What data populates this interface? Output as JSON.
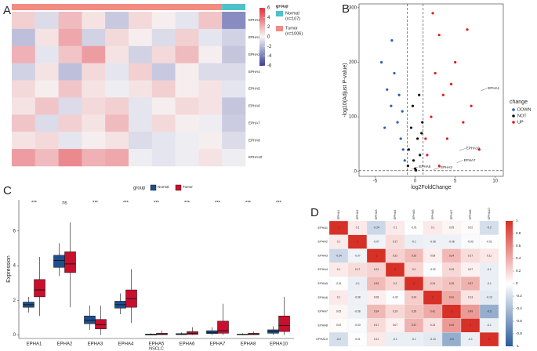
{
  "chart_data": [
    {
      "type": "heatmap",
      "panel": "A",
      "legend_title": "group",
      "rows": [
        "EPHA1",
        "EPHA2",
        "EPHA3",
        "EPHA4",
        "EPHA5",
        "EPHA6",
        "EPHA7",
        "EPHA8",
        "EPHA10"
      ],
      "series": [
        {
          "name": "Normal",
          "count": "(n=107)",
          "color": "#4dc3c8",
          "values": [
            [
              -3.5
            ],
            [
              -1.2
            ],
            [
              -1.6
            ],
            [
              -0.9
            ],
            [
              -0.6
            ],
            [
              -1.6
            ],
            [
              -1.4
            ],
            [
              -0.9
            ],
            [
              -0.3
            ]
          ]
        },
        {
          "name": "Tumor",
          "count": "(n=1006)",
          "color": "#f28b82",
          "values": [
            [
              1.2,
              -0.9,
              1.8,
              0.6,
              -1.5,
              0.9,
              0.3,
              -0.6,
              1.5
            ],
            [
              -1.8,
              0.6,
              2.4,
              -1.2,
              0.9,
              0.3,
              -0.9,
              1.2,
              -0.6
            ],
            [
              2.1,
              -0.6,
              1.5,
              2.7,
              0.6,
              -1.2,
              0.9,
              1.8,
              0.3
            ],
            [
              -1.2,
              0.6,
              -1.8,
              0.9,
              -0.6,
              1.2,
              -1.5,
              0.3,
              -0.9
            ],
            [
              0.9,
              0.3,
              1.5,
              0.6,
              -0.3,
              0.6,
              1.2,
              0.3,
              0.6
            ],
            [
              0.6,
              1.5,
              -0.9,
              0.9,
              1.2,
              -0.6,
              0.3,
              0.9,
              0.6
            ],
            [
              1.5,
              -0.9,
              1.2,
              0.6,
              1.8,
              -0.6,
              0.9,
              0.3,
              -0.3
            ],
            [
              0.6,
              0.9,
              -0.6,
              0.3,
              0.6,
              -0.9,
              -0.6,
              -0.3,
              0.3
            ],
            [
              2.7,
              1.8,
              3.3,
              2.1,
              2.4,
              -0.3,
              -0.6,
              -0.3,
              0.6
            ]
          ]
        }
      ],
      "colorbar": {
        "lim": [
          -6,
          6
        ],
        "ticks": [
          6,
          4,
          2,
          0,
          -2,
          -4,
          -6
        ],
        "colors": [
          "#3a3f99",
          "#f7f7f7",
          "#e0303a"
        ]
      }
    },
    {
      "type": "scatter",
      "panel": "B",
      "xlabel": "log2FoldChange",
      "ylabel": "-log10(Adjust P-value)",
      "xlim": [
        -7,
        11
      ],
      "ylim": [
        -9,
        307
      ],
      "xticks": [
        -5,
        0,
        5,
        10
      ],
      "yticks": [
        0,
        100,
        200,
        300
      ],
      "legend_title": "change",
      "vlines": [
        -1,
        1
      ],
      "hlines": [
        1.3
      ],
      "series": [
        {
          "name": "DOWN",
          "color": "#2b5fae",
          "x": [
            -4.2,
            -3.5,
            -3.0,
            -2.6,
            -2.2,
            -1.8,
            -1.5,
            -1.3,
            -3.8,
            -2.9,
            -2.0,
            -1.6
          ],
          "y": [
            200,
            150,
            120,
            180,
            90,
            60,
            40,
            20,
            80,
            240,
            140,
            110
          ]
        },
        {
          "name": "NOT",
          "color": "#111111",
          "x": [
            -0.8,
            -0.5,
            -0.2,
            0,
            0.3,
            0.6,
            0.9,
            -0.9,
            0.5,
            -0.3,
            0.1,
            0.8
          ],
          "y": [
            40,
            80,
            20,
            5,
            60,
            30,
            90,
            10,
            140,
            120,
            2,
            70
          ]
        },
        {
          "name": "UP",
          "color": "#e41a1c",
          "x": [
            1.5,
            2,
            2.5,
            3,
            3.5,
            4,
            5,
            6,
            7,
            8,
            2.2,
            4.5,
            3,
            1.3,
            6.5
          ],
          "y": [
            30,
            100,
            180,
            250,
            140,
            60,
            200,
            90,
            120,
            40,
            290,
            160,
            10,
            60,
            260
          ]
        }
      ],
      "annotations": [
        {
          "text": "EPHA1",
          "x": 8.2,
          "y": 148
        },
        {
          "text": "EPHA10",
          "x": 5.5,
          "y": 38
        },
        {
          "text": "EPHA7",
          "x": 5.2,
          "y": 16
        },
        {
          "text": "EPHA3",
          "x": 2.3,
          "y": 3
        },
        {
          "text": "EPHA5",
          "x": -0.4,
          "y": 4
        }
      ]
    },
    {
      "type": "box",
      "panel": "C",
      "xlabel": "NSCLC",
      "ylabel": "Expression",
      "legend_title": "group",
      "ylim": [
        -0.2,
        7.8
      ],
      "yticks": [
        0,
        2,
        4,
        6
      ],
      "categories": [
        "EPHA1",
        "EPHA2",
        "EPHA3",
        "EPHA4",
        "EPHA5",
        "EPHA6",
        "EPHA7",
        "EPHA8",
        "EPHA10"
      ],
      "significance": [
        "***",
        "ns",
        "***",
        "***",
        "***",
        "***",
        "***",
        "***",
        "***"
      ],
      "series": [
        {
          "name": "Normal",
          "color": "#1f4e8c",
          "min": [
            1.3,
            3.4,
            0.3,
            1.2,
            0,
            0,
            0,
            0,
            0
          ],
          "q1": [
            1.6,
            3.9,
            0.65,
            1.55,
            0,
            0.02,
            0.08,
            0.01,
            0.1
          ],
          "median": [
            1.75,
            4.3,
            0.85,
            1.75,
            0.02,
            0.05,
            0.15,
            0.03,
            0.2
          ],
          "q3": [
            1.9,
            4.6,
            1.1,
            1.95,
            0.05,
            0.08,
            0.25,
            0.05,
            0.3
          ],
          "max": [
            2.2,
            5.3,
            1.7,
            2.4,
            0.1,
            0.15,
            0.45,
            0.1,
            0.5
          ]
        },
        {
          "name": "Tumor",
          "color": "#c8102e",
          "min": [
            1.1,
            1.6,
            0,
            0.7,
            0,
            0,
            0,
            0,
            0
          ],
          "q1": [
            2.2,
            3.6,
            0.35,
            1.6,
            0.02,
            0.03,
            0.1,
            0.02,
            0.2
          ],
          "median": [
            2.6,
            4.1,
            0.6,
            2.1,
            0.05,
            0.1,
            0.25,
            0.05,
            0.55
          ],
          "q3": [
            3.2,
            4.8,
            0.9,
            2.6,
            0.1,
            0.2,
            0.8,
            0.1,
            1.1
          ],
          "max": [
            4.5,
            6.5,
            1.7,
            3.8,
            0.25,
            0.45,
            1.8,
            0.2,
            2.2
          ]
        }
      ]
    },
    {
      "type": "corrplot",
      "panel": "D",
      "labels": [
        "EPHA1",
        "EPHA2",
        "EPHA3",
        "EPHA4",
        "EPHA5",
        "EPHA6",
        "EPHA7",
        "EPHA8",
        "EPHA10"
      ],
      "values": [
        [
          1,
          0.1,
          -0.24,
          0.1,
          -0.01,
          0.1,
          0.05,
          0.02,
          -0.2
        ],
        [
          0.1,
          1,
          -0.07,
          0.17,
          -0.1,
          -0.08,
          -0.08,
          -0.03,
          -0.01
        ],
        [
          -0.24,
          -0.07,
          1,
          0.22,
          0.33,
          0.08,
          0.34,
          0.17,
          0.11
        ],
        [
          0.1,
          0.17,
          0.22,
          1,
          0.2,
          -0.02,
          0.19,
          0.07,
          -0.1
        ],
        [
          -0.01,
          -0.1,
          0.33,
          0.2,
          1,
          0.24,
          0.29,
          0.37,
          -0.1
        ],
        [
          0.1,
          -0.08,
          0.08,
          -0.02,
          0.24,
          1,
          0.41,
          0.13,
          -0.13
        ],
        [
          0.05,
          -0.08,
          0.34,
          0.19,
          0.29,
          0.41,
          1,
          0.49,
          -0.5
        ],
        [
          0.02,
          -0.03,
          0.17,
          0.07,
          0.37,
          0.13,
          0.49,
          1,
          -0.1
        ],
        [
          -0.2,
          -0.01,
          0.11,
          -0.1,
          -0.1,
          -0.13,
          -0.5,
          -0.1,
          1
        ]
      ],
      "colorbar": {
        "lim": [
          -1,
          1
        ],
        "ticks": [
          1,
          0.8,
          0.6,
          0.4,
          0.2,
          0,
          -0.2,
          -0.4,
          -0.6,
          -0.8,
          -1
        ],
        "colors": [
          "#2c5c9a",
          "#ffffff",
          "#d73027"
        ]
      }
    }
  ]
}
